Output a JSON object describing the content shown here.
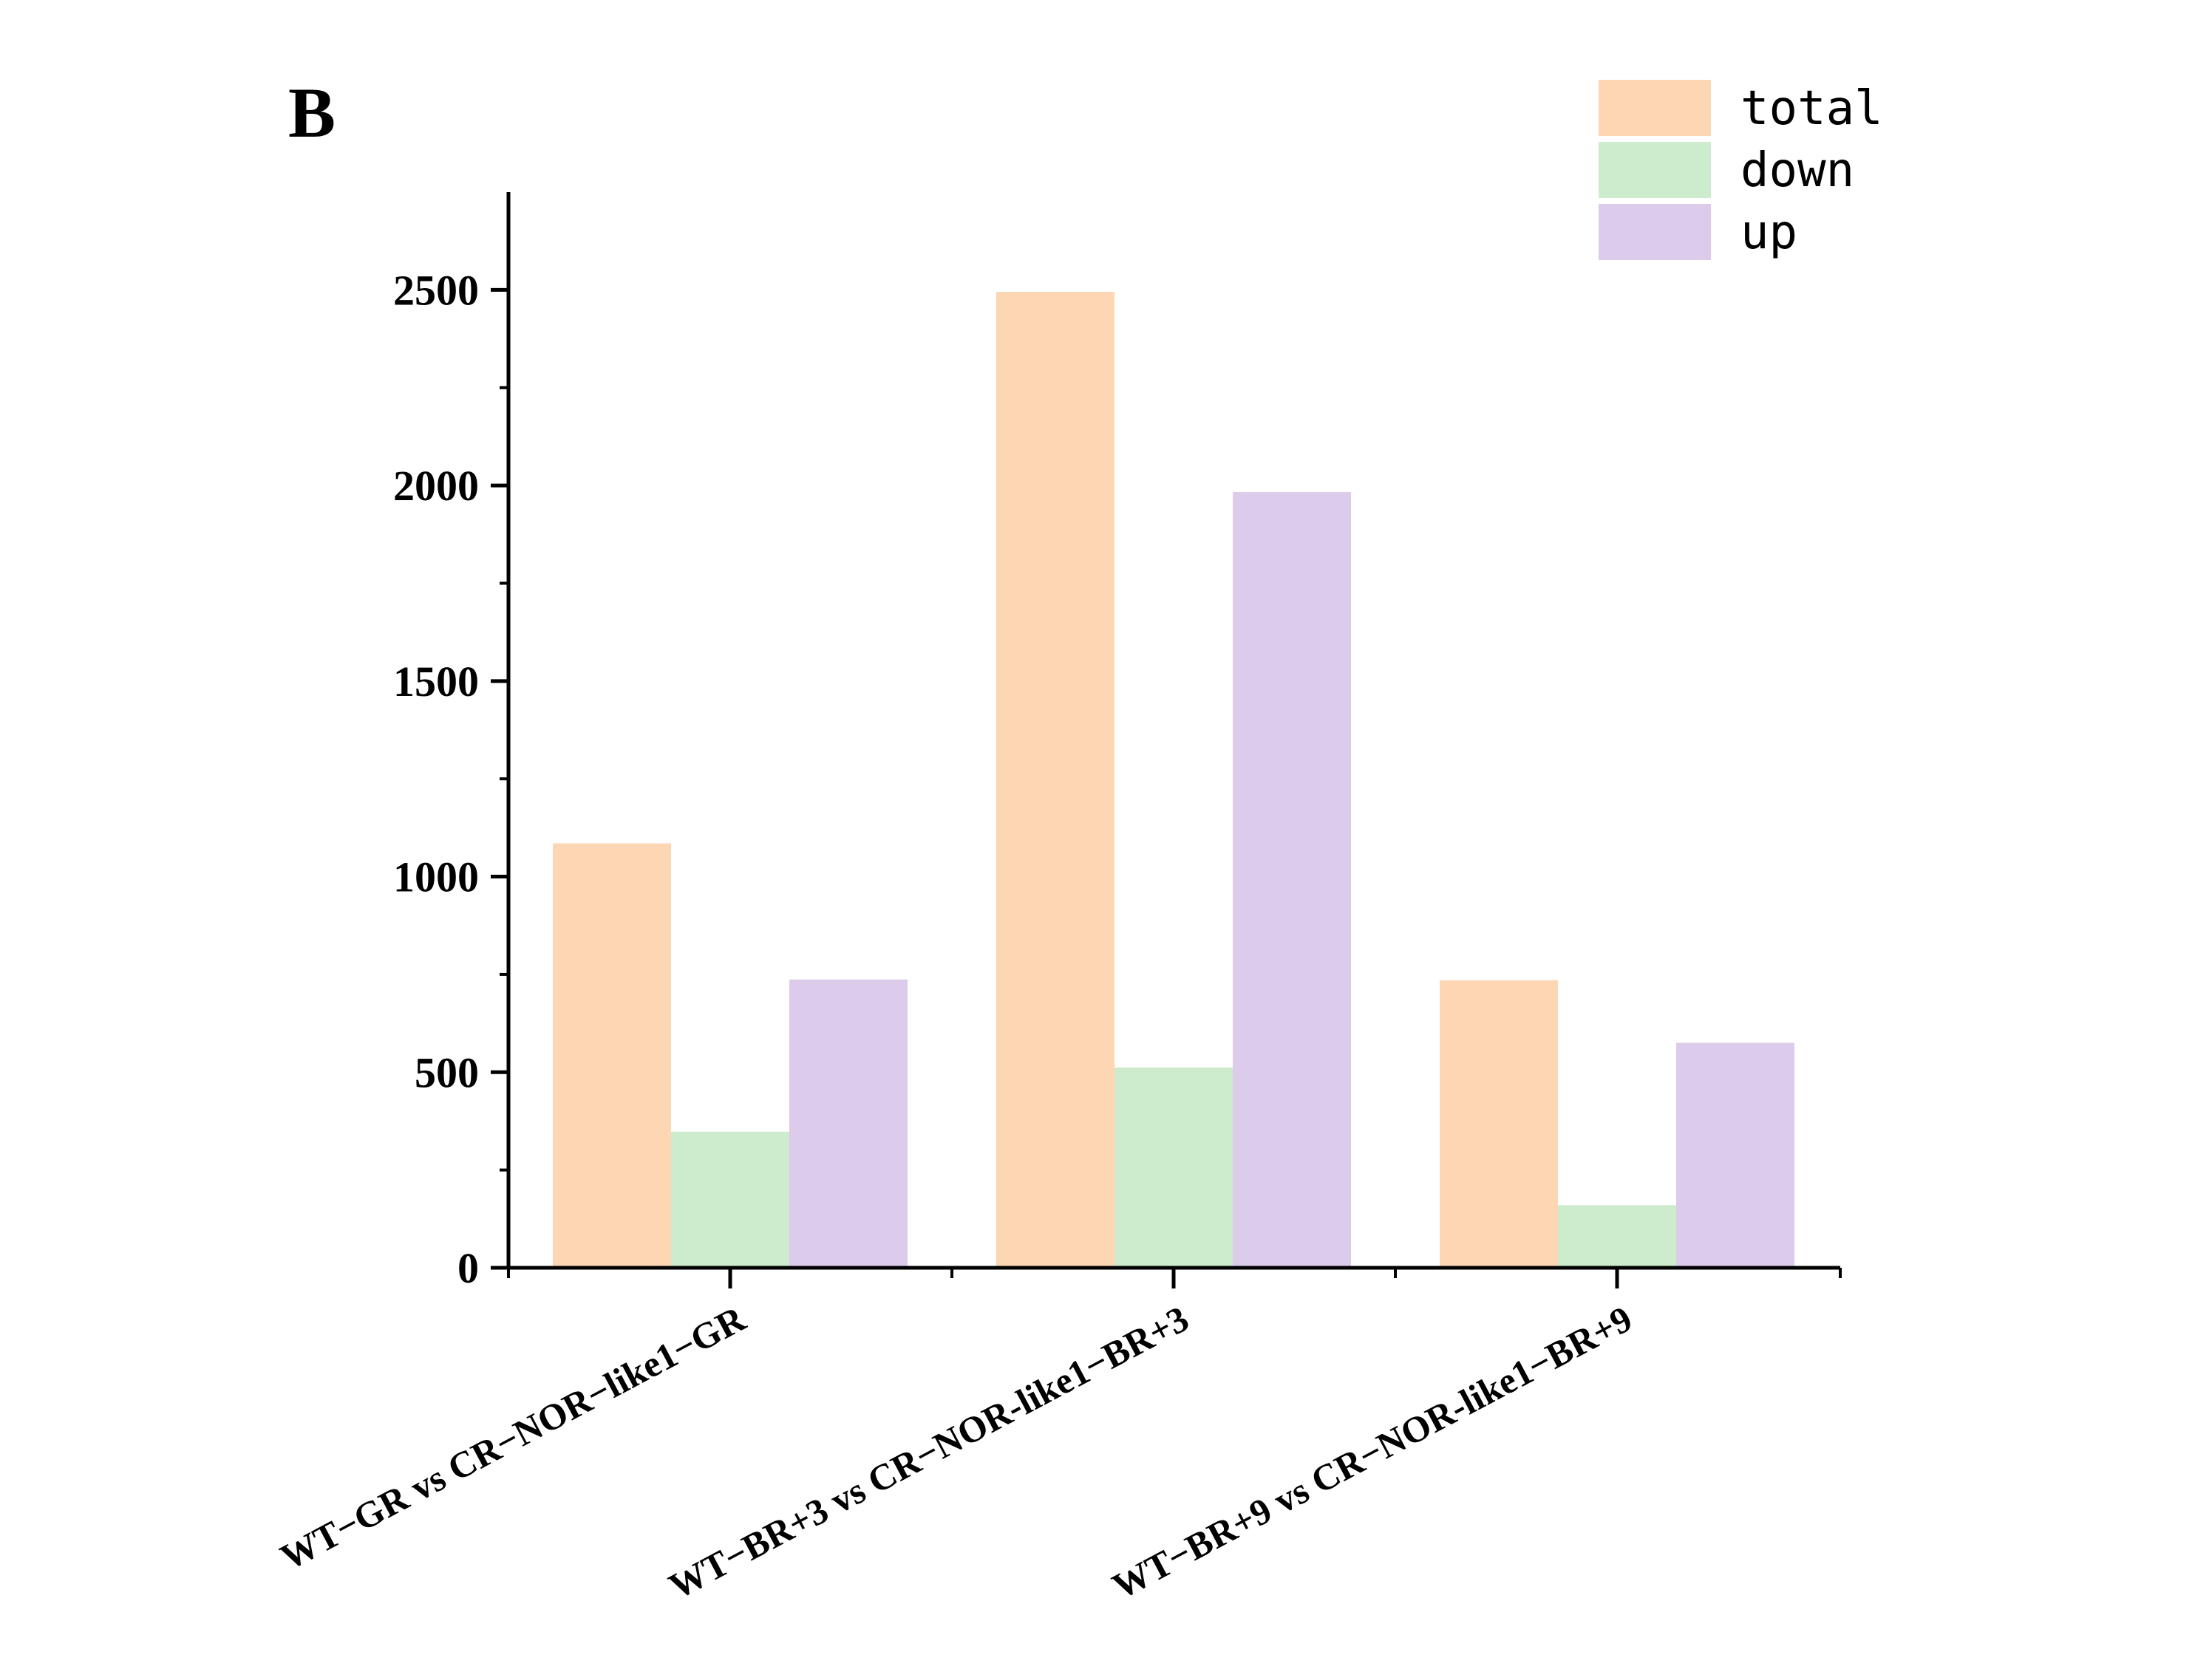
{
  "panel_label": "B",
  "colors": {
    "total": "#fdd7b4",
    "down": "#cdebcd",
    "up": "#dccbea",
    "axis": "#000000"
  },
  "chart_data": {
    "type": "bar",
    "title": "",
    "xlabel": "",
    "ylabel": "",
    "ylim": [
      0,
      2750
    ],
    "yticks": [
      0,
      500,
      1000,
      1500,
      2000,
      2500
    ],
    "grid": false,
    "legend_position": "top-right",
    "categories": [
      "WT−GR vs CR−NOR−like1−GR",
      "WT−BR+3 vs CR−NOR-like1−BR+3",
      "WT−BR+9 vs CR−NOR-like1−BR+9"
    ],
    "series": [
      {
        "name": "total",
        "values": [
          1085,
          2495,
          735
        ]
      },
      {
        "name": "down",
        "values": [
          348,
          512,
          160
        ]
      },
      {
        "name": "up",
        "values": [
          737,
          1983,
          575
        ]
      }
    ]
  }
}
